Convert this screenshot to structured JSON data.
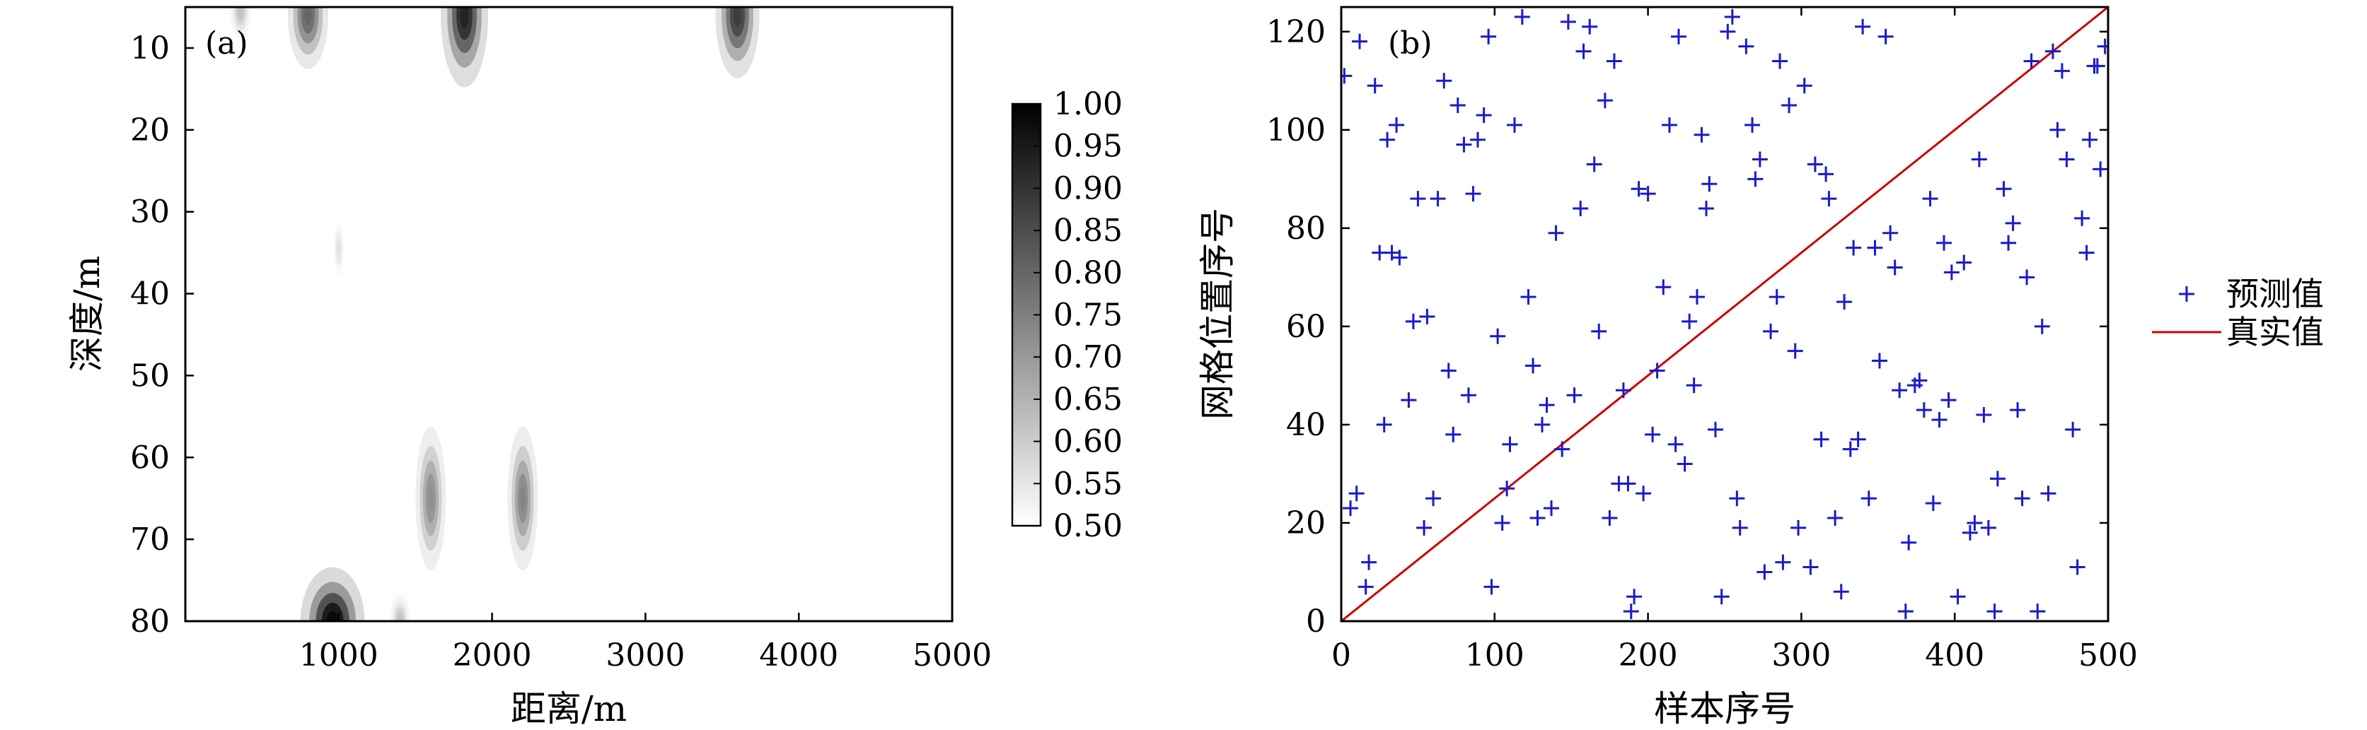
{
  "chart_data": [
    {
      "type": "heatmap",
      "panel_label": "(a)",
      "xlabel": "距离/m",
      "ylabel": "深度/m",
      "xlim": [
        0,
        5000
      ],
      "ylim": [
        5,
        80
      ],
      "y_inverted": true,
      "x_ticks": [
        "1000",
        "2000",
        "3000",
        "4000",
        "5000"
      ],
      "x_tick_values": [
        1000,
        2000,
        3000,
        4000,
        5000
      ],
      "y_ticks": [
        "10",
        "20",
        "30",
        "40",
        "50",
        "60",
        "70",
        "80"
      ],
      "y_tick_values": [
        10,
        20,
        30,
        40,
        50,
        60,
        70,
        80
      ],
      "colorbar": {
        "range": [
          0.5,
          1.0
        ],
        "ticks": [
          "0.50",
          "0.55",
          "0.60",
          "0.65",
          "0.70",
          "0.75",
          "0.80",
          "0.85",
          "0.90",
          "0.95",
          "1.00"
        ],
        "tick_values": [
          0.5,
          0.55,
          0.6,
          0.65,
          0.7,
          0.75,
          0.8,
          0.85,
          0.9,
          0.95,
          1.0
        ],
        "colormap": "gray (white = 0.50, black = 1.00)"
      },
      "hotspots": [
        {
          "x": 800,
          "y": 6,
          "sx": 60,
          "sy": 3,
          "peak": 0.8
        },
        {
          "x": 1820,
          "y": 6,
          "sx": 70,
          "sy": 4,
          "peak": 0.93
        },
        {
          "x": 3600,
          "y": 6,
          "sx": 65,
          "sy": 3.5,
          "peak": 0.88
        },
        {
          "x": 360,
          "y": 5.5,
          "sx": 30,
          "sy": 1.5,
          "peak": 0.62
        },
        {
          "x": 1000,
          "y": 34.5,
          "sx": 15,
          "sy": 1.5,
          "peak": 0.56
        },
        {
          "x": 1600,
          "y": 65,
          "sx": 45,
          "sy": 4,
          "peak": 0.72
        },
        {
          "x": 2200,
          "y": 65,
          "sx": 45,
          "sy": 4,
          "peak": 0.74
        },
        {
          "x": 960,
          "y": 80,
          "sx": 95,
          "sy": 3,
          "peak": 0.98
        },
        {
          "x": 1400,
          "y": 80,
          "sx": 30,
          "sy": 1.5,
          "peak": 0.62
        }
      ]
    },
    {
      "type": "scatter",
      "panel_label": "(b)",
      "xlabel": "样本序号",
      "ylabel": "网格位置序号",
      "xlim": [
        0,
        500
      ],
      "ylim": [
        0,
        125
      ],
      "x_ticks": [
        "0",
        "100",
        "200",
        "300",
        "400",
        "500"
      ],
      "x_tick_values": [
        0,
        100,
        200,
        300,
        400,
        500
      ],
      "y_ticks": [
        "0",
        "20",
        "40",
        "60",
        "80",
        "100",
        "120"
      ],
      "y_tick_values": [
        0,
        20,
        40,
        60,
        80,
        100,
        120
      ],
      "legend": [
        "预测值",
        "真实值"
      ],
      "series": [
        {
          "name": "预测值",
          "marker": "+",
          "color": "#1a1acc",
          "points": [
            [
              2,
              111
            ],
            [
              6,
              23
            ],
            [
              10,
              26
            ],
            [
              12,
              118
            ],
            [
              16,
              7
            ],
            [
              18,
              12
            ],
            [
              22,
              109
            ],
            [
              25,
              75
            ],
            [
              28,
              40
            ],
            [
              30,
              98
            ],
            [
              33,
              75
            ],
            [
              36,
              101
            ],
            [
              38,
              74
            ],
            [
              44,
              45
            ],
            [
              47,
              61
            ],
            [
              50,
              86
            ],
            [
              54,
              19
            ],
            [
              56,
              62
            ],
            [
              60,
              25
            ],
            [
              63,
              86
            ],
            [
              67,
              110
            ],
            [
              70,
              51
            ],
            [
              73,
              38
            ],
            [
              76,
              105
            ],
            [
              80,
              97
            ],
            [
              83,
              46
            ],
            [
              86,
              87
            ],
            [
              89,
              98
            ],
            [
              93,
              103
            ],
            [
              96,
              119
            ],
            [
              98,
              7
            ],
            [
              102,
              58
            ],
            [
              105,
              20
            ],
            [
              108,
              27
            ],
            [
              110,
              36
            ],
            [
              113,
              101
            ],
            [
              118,
              123
            ],
            [
              122,
              66
            ],
            [
              125,
              52
            ],
            [
              128,
              21
            ],
            [
              131,
              40
            ],
            [
              134,
              44
            ],
            [
              137,
              23
            ],
            [
              140,
              79
            ],
            [
              144,
              35
            ],
            [
              148,
              122
            ],
            [
              152,
              46
            ],
            [
              156,
              84
            ],
            [
              158,
              116
            ],
            [
              162,
              121
            ],
            [
              165,
              93
            ],
            [
              168,
              59
            ],
            [
              172,
              106
            ],
            [
              175,
              21
            ],
            [
              178,
              114
            ],
            [
              181,
              28
            ],
            [
              184,
              47
            ],
            [
              187,
              28
            ],
            [
              189,
              2
            ],
            [
              191,
              5
            ],
            [
              194,
              88
            ],
            [
              197,
              26
            ],
            [
              200,
              87
            ],
            [
              203,
              38
            ],
            [
              206,
              51
            ],
            [
              210,
              68
            ],
            [
              214,
              101
            ],
            [
              218,
              36
            ],
            [
              220,
              119
            ],
            [
              224,
              32
            ],
            [
              227,
              61
            ],
            [
              230,
              48
            ],
            [
              232,
              66
            ],
            [
              235,
              99
            ],
            [
              238,
              84
            ],
            [
              240,
              89
            ],
            [
              244,
              39
            ],
            [
              248,
              5
            ],
            [
              252,
              120
            ],
            [
              255,
              123
            ],
            [
              258,
              25
            ],
            [
              260,
              19
            ],
            [
              264,
              117
            ],
            [
              268,
              101
            ],
            [
              270,
              90
            ],
            [
              273,
              94
            ],
            [
              276,
              10
            ],
            [
              280,
              59
            ],
            [
              284,
              66
            ],
            [
              286,
              114
            ],
            [
              288,
              12
            ],
            [
              292,
              105
            ],
            [
              296,
              55
            ],
            [
              298,
              19
            ],
            [
              302,
              109
            ],
            [
              306,
              11
            ],
            [
              309,
              93
            ],
            [
              313,
              37
            ],
            [
              316,
              91
            ],
            [
              318,
              86
            ],
            [
              322,
              21
            ],
            [
              326,
              6
            ],
            [
              328,
              65
            ],
            [
              332,
              35
            ],
            [
              334,
              76
            ],
            [
              337,
              37
            ],
            [
              340,
              121
            ],
            [
              344,
              25
            ],
            [
              348,
              76
            ],
            [
              351,
              53
            ],
            [
              355,
              119
            ],
            [
              358,
              79
            ],
            [
              361,
              72
            ],
            [
              364,
              47
            ],
            [
              368,
              2
            ],
            [
              370,
              16
            ],
            [
              374,
              48
            ],
            [
              377,
              49
            ],
            [
              380,
              43
            ],
            [
              384,
              86
            ],
            [
              386,
              24
            ],
            [
              390,
              41
            ],
            [
              393,
              77
            ],
            [
              396,
              45
            ],
            [
              398,
              71
            ],
            [
              402,
              5
            ],
            [
              406,
              73
            ],
            [
              410,
              18
            ],
            [
              413,
              20
            ],
            [
              416,
              94
            ],
            [
              419,
              42
            ],
            [
              422,
              19
            ],
            [
              426,
              2
            ],
            [
              428,
              29
            ],
            [
              432,
              88
            ],
            [
              435,
              77
            ],
            [
              438,
              81
            ],
            [
              441,
              43
            ],
            [
              444,
              25
            ],
            [
              447,
              70
            ],
            [
              450,
              114
            ],
            [
              454,
              2
            ],
            [
              457,
              60
            ],
            [
              461,
              26
            ],
            [
              464,
              116
            ],
            [
              467,
              100
            ],
            [
              470,
              112
            ],
            [
              473,
              94
            ],
            [
              477,
              39
            ],
            [
              480,
              11
            ],
            [
              483,
              82
            ],
            [
              486,
              75
            ],
            [
              488,
              98
            ],
            [
              491,
              113
            ],
            [
              493,
              113
            ],
            [
              495,
              92
            ],
            [
              498,
              117
            ]
          ]
        },
        {
          "name": "真实值",
          "type": "line",
          "color": "#cc0000",
          "points": [
            [
              0,
              0
            ],
            [
              500,
              125
            ]
          ]
        }
      ]
    }
  ]
}
